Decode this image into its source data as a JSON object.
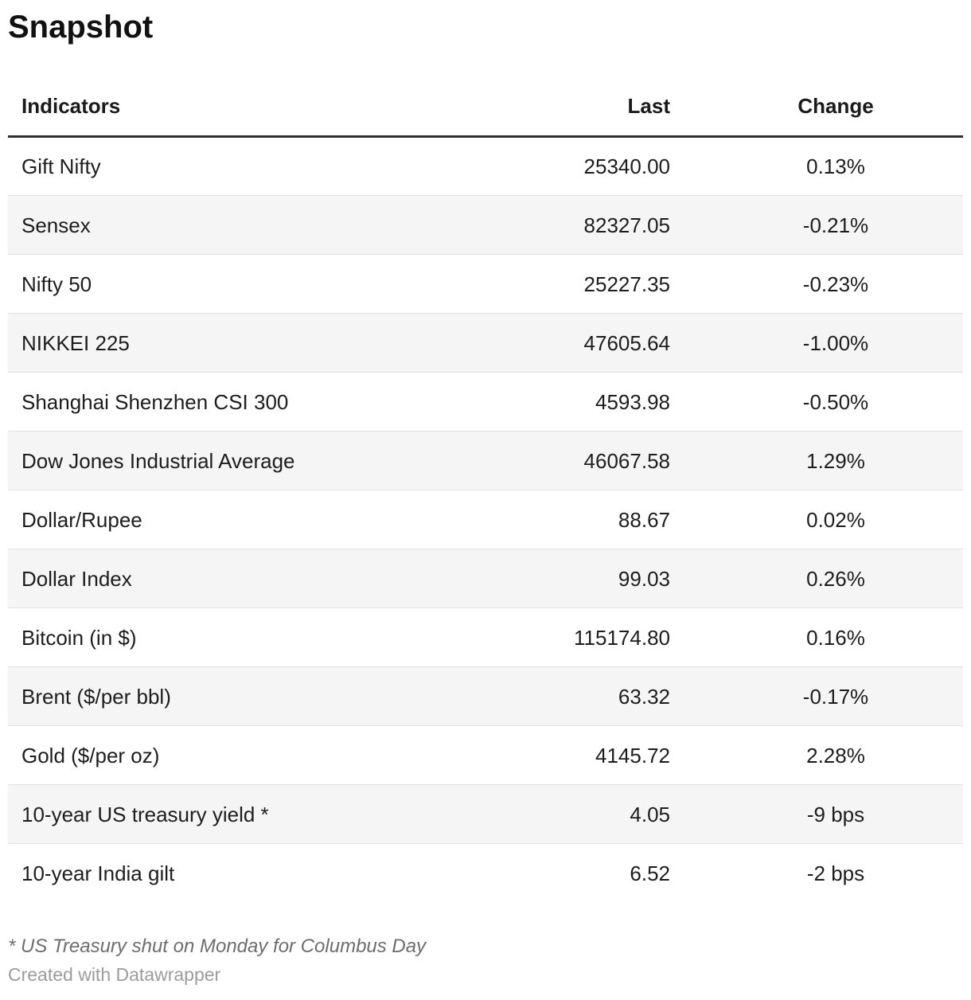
{
  "title": "Snapshot",
  "footnote": "* US Treasury shut on Monday for Columbus Day",
  "attribution": "Created with Datawrapper",
  "colors": {
    "text": "#1d1d1d",
    "header_border": "#2f2f2f",
    "row_border": "#e2e2e2",
    "stripe": "#f5f5f5",
    "footnote_text": "#6d6d6d",
    "attribution_text": "#9c9c9c"
  },
  "chart_data": {
    "type": "table",
    "title": "Snapshot",
    "columns": [
      {
        "key": "indicator",
        "label": "Indicators",
        "align": "left"
      },
      {
        "key": "last",
        "label": "Last",
        "align": "right"
      },
      {
        "key": "change",
        "label": "Change",
        "align": "center"
      }
    ],
    "rows": [
      {
        "indicator": "Gift Nifty",
        "last": "25340.00",
        "change": "0.13%"
      },
      {
        "indicator": "Sensex",
        "last": "82327.05",
        "change": "-0.21%"
      },
      {
        "indicator": "Nifty 50",
        "last": "25227.35",
        "change": "-0.23%"
      },
      {
        "indicator": "NIKKEI 225",
        "last": "47605.64",
        "change": "-1.00%"
      },
      {
        "indicator": "Shanghai Shenzhen CSI 300",
        "last": "4593.98",
        "change": "-0.50%"
      },
      {
        "indicator": "Dow Jones Industrial Average",
        "last": "46067.58",
        "change": "1.29%"
      },
      {
        "indicator": "Dollar/Rupee",
        "last": "88.67",
        "change": "0.02%"
      },
      {
        "indicator": "Dollar Index",
        "last": "99.03",
        "change": "0.26%"
      },
      {
        "indicator": "Bitcoin (in $)",
        "last": "115174.80",
        "change": "0.16%"
      },
      {
        "indicator": "Brent ($/per bbl)",
        "last": "63.32",
        "change": "-0.17%"
      },
      {
        "indicator": "Gold ($/per oz)",
        "last": "4145.72",
        "change": "2.28%"
      },
      {
        "indicator": "10-year US treasury yield *",
        "last": "4.05",
        "change": "-9 bps"
      },
      {
        "indicator": "10-year India gilt",
        "last": "6.52",
        "change": "-2 bps"
      }
    ],
    "layout_hints": {
      "striped_rows": "even rows shaded",
      "header_rule": "thick dark rule below header",
      "grid": "thin light rule between rows"
    },
    "footnote": "* US Treasury shut on Monday for Columbus Day"
  }
}
